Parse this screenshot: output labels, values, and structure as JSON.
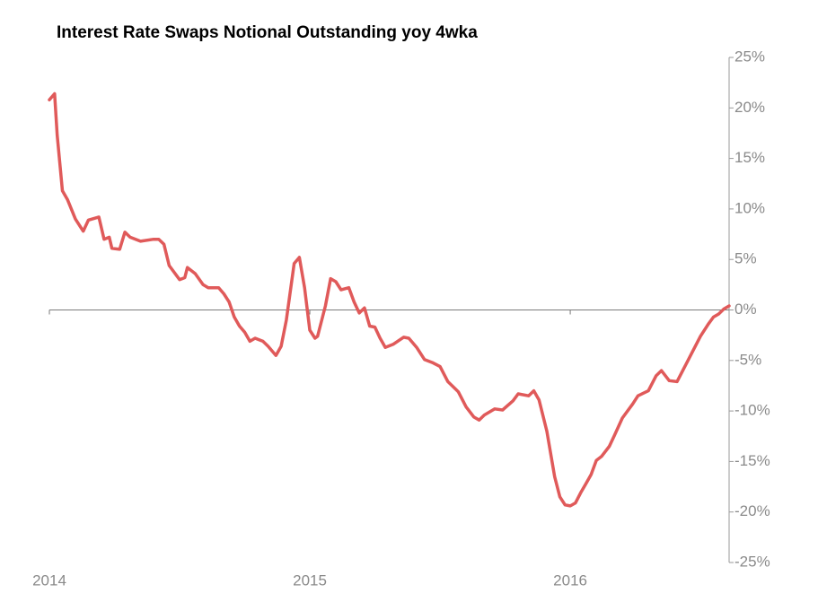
{
  "chart_data": {
    "type": "line",
    "title": "Interest Rate Swaps Notional Outstanding yoy 4wka",
    "x": [
      2014.0,
      2014.02,
      2014.03,
      2014.05,
      2014.07,
      2014.1,
      2014.13,
      2014.15,
      2014.19,
      2014.21,
      2014.23,
      2014.24,
      2014.27,
      2014.29,
      2014.31,
      2014.35,
      2014.4,
      2014.42,
      2014.44,
      2014.46,
      2014.5,
      2014.52,
      2014.53,
      2014.56,
      2014.59,
      2014.61,
      2014.65,
      2014.67,
      2014.69,
      2014.71,
      2014.73,
      2014.75,
      2014.77,
      2014.79,
      2014.82,
      2014.84,
      2014.87,
      2014.89,
      2014.91,
      2014.94,
      2014.96,
      2014.98,
      2015.0,
      2015.02,
      2015.03,
      2015.06,
      2015.08,
      2015.1,
      2015.12,
      2015.15,
      2015.17,
      2015.19,
      2015.21,
      2015.23,
      2015.25,
      2015.27,
      2015.29,
      2015.32,
      2015.36,
      2015.38,
      2015.41,
      2015.44,
      2015.47,
      2015.5,
      2015.53,
      2015.57,
      2015.6,
      2015.63,
      2015.65,
      2015.67,
      2015.71,
      2015.74,
      2015.78,
      2015.8,
      2015.84,
      2015.86,
      2015.88,
      2015.91,
      2015.94,
      2015.96,
      2015.98,
      2016.0,
      2016.02,
      2016.04,
      2016.06,
      2016.08,
      2016.1,
      2016.12,
      2016.15,
      2016.17,
      2016.2,
      2016.24,
      2016.26,
      2016.3,
      2016.33,
      2016.35,
      2016.38,
      2016.41,
      2016.44,
      2016.47,
      2016.5,
      2016.53,
      2016.55,
      2016.57,
      2016.59,
      2016.61
    ],
    "series": [
      {
        "name": "Interest Rate Swaps Notional Outstanding yoy 4wka",
        "color": "#e05a5a",
        "values": [
          20.8,
          21.4,
          17.3,
          11.8,
          10.9,
          9.0,
          7.8,
          8.9,
          9.2,
          7.0,
          7.2,
          6.1,
          6.0,
          7.7,
          7.2,
          6.8,
          7.0,
          7.0,
          6.5,
          4.4,
          3.0,
          3.2,
          4.2,
          3.6,
          2.5,
          2.2,
          2.2,
          1.6,
          0.8,
          -0.7,
          -1.6,
          -2.2,
          -3.1,
          -2.8,
          -3.1,
          -3.6,
          -4.5,
          -3.6,
          -1.0,
          4.6,
          5.2,
          2.2,
          -2.0,
          -2.8,
          -2.6,
          0.4,
          3.1,
          2.8,
          2.0,
          2.2,
          0.8,
          -0.3,
          0.2,
          -1.6,
          -1.7,
          -2.8,
          -3.7,
          -3.4,
          -2.7,
          -2.8,
          -3.7,
          -4.9,
          -5.2,
          -5.6,
          -7.1,
          -8.1,
          -9.6,
          -10.6,
          -10.9,
          -10.4,
          -9.8,
          -9.9,
          -9.0,
          -8.3,
          -8.5,
          -8.0,
          -8.9,
          -12.0,
          -16.5,
          -18.5,
          -19.3,
          -19.4,
          -19.1,
          -18.1,
          -17.2,
          -16.3,
          -14.9,
          -14.5,
          -13.5,
          -12.4,
          -10.7,
          -9.3,
          -8.5,
          -8.0,
          -6.5,
          -6.0,
          -7.0,
          -7.1,
          -5.6,
          -4.1,
          -2.6,
          -1.4,
          -0.7,
          -0.4,
          0.1,
          0.4
        ]
      }
    ],
    "xlim": [
      2014,
      2016.61
    ],
    "xticks": [
      2014,
      2015,
      2016
    ],
    "ylim": [
      -25,
      25
    ],
    "yticks": [
      {
        "value": -25,
        "label": "-25%"
      },
      {
        "value": -20,
        "label": "-20%"
      },
      {
        "value": -15,
        "label": "-15%"
      },
      {
        "value": -10,
        "label": "-10%"
      },
      {
        "value": -5,
        "label": "-5%"
      },
      {
        "value": 0,
        "label": "0%"
      },
      {
        "value": 5,
        "label": "5%"
      },
      {
        "value": 10,
        "label": "10%"
      },
      {
        "value": 15,
        "label": "15%"
      },
      {
        "value": 20,
        "label": "20%"
      },
      {
        "value": 25,
        "label": "25%"
      }
    ],
    "y_axis_side": "right"
  }
}
